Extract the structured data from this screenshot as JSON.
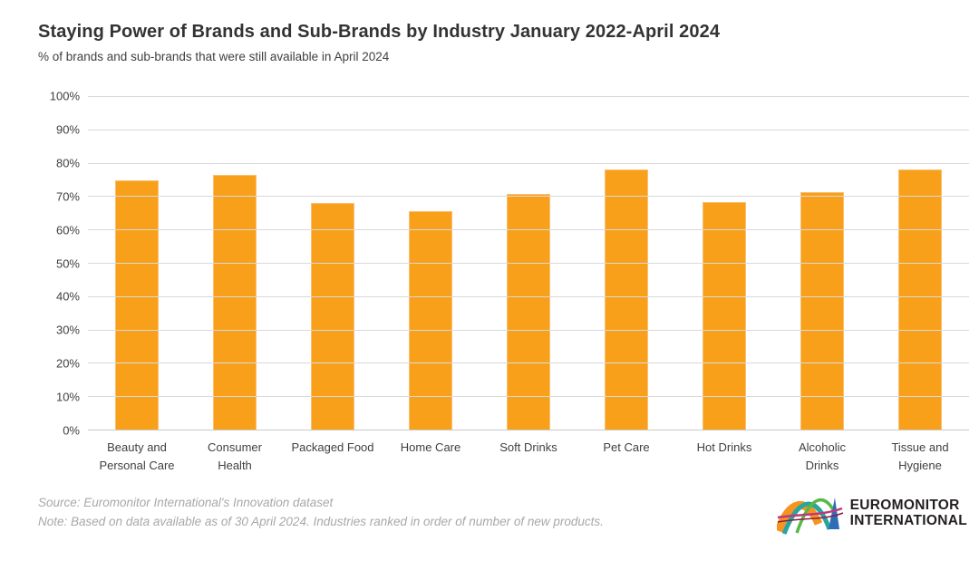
{
  "chart_data": {
    "type": "bar",
    "title": "Staying Power of Brands and Sub-Brands by Industry January 2022-April 2024",
    "subtitle": "% of brands and sub-brands that were still available in April 2024",
    "categories": [
      "Beauty and\nPersonal Care",
      "Consumer\nHealth",
      "Packaged Food",
      "Home Care",
      "Soft Drinks",
      "Pet Care",
      "Hot Drinks",
      "Alcoholic\nDrinks",
      "Tissue and\nHygiene"
    ],
    "values": [
      74.8,
      76.3,
      68.0,
      65.6,
      70.7,
      78.1,
      68.3,
      71.2,
      78.1
    ],
    "y_ticks": [
      "0%",
      "10%",
      "20%",
      "30%",
      "40%",
      "50%",
      "60%",
      "70%",
      "80%",
      "90%",
      "100%"
    ],
    "ylim": [
      0,
      100
    ],
    "grid": "horizontal",
    "legend": "none",
    "bar_color": "#F9A01B"
  },
  "footer": {
    "source": "Source: Euromonitor International's Innovation dataset",
    "note": "Note: Based on data available as of 30 April 2024. Industries ranked in order of number of new products."
  },
  "logo": {
    "line1": "EUROMONITOR",
    "line2": "INTERNATIONAL",
    "colors": {
      "orange": "#F5941F",
      "teal": "#29A5A0",
      "green": "#58B947",
      "magenta": "#C0377E",
      "dark_red": "#8A1E41",
      "blue": "#2F6DB7",
      "text": "#231F20"
    }
  }
}
